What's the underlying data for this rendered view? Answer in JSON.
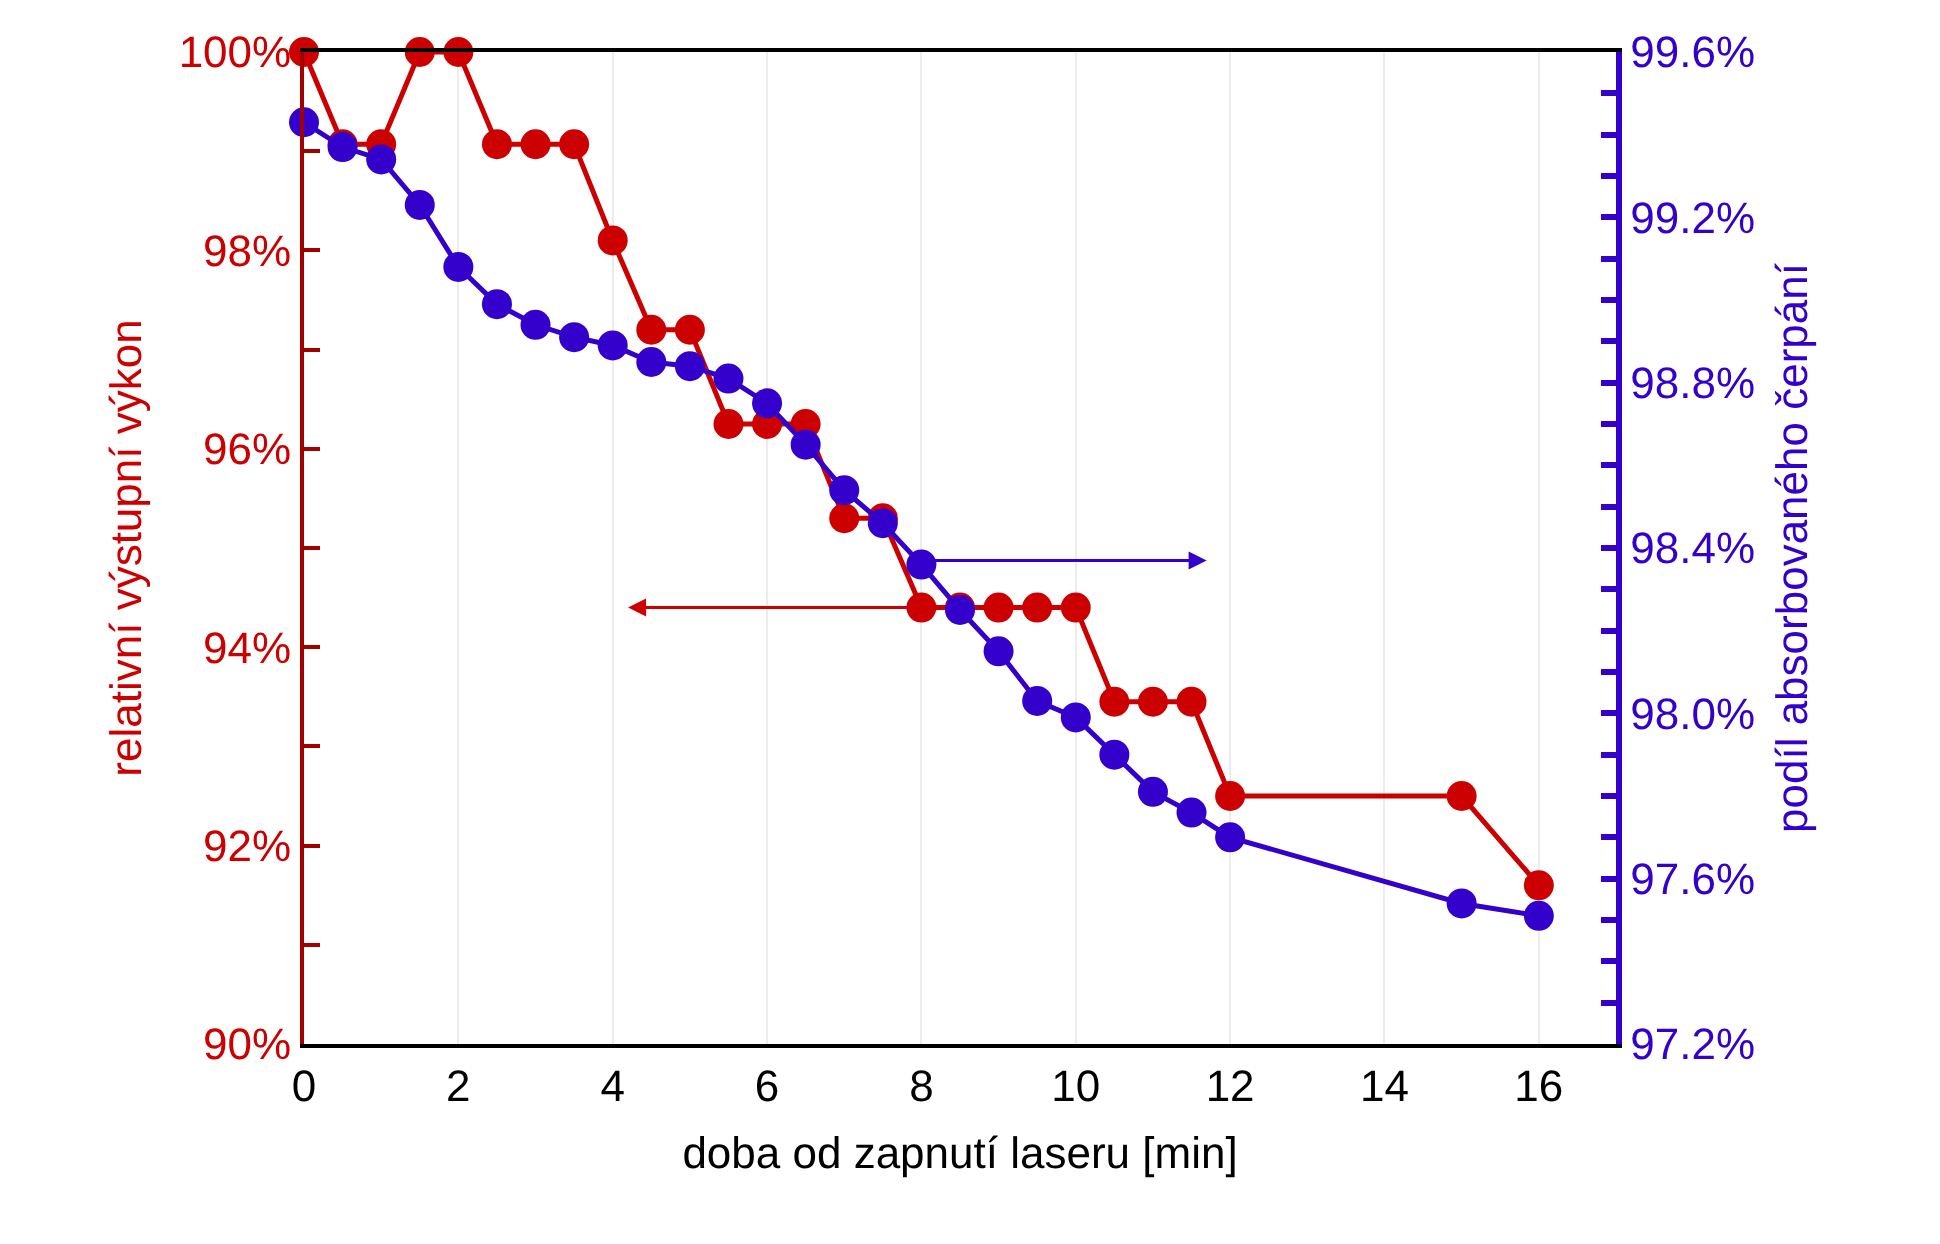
{
  "chart_data": {
    "type": "line",
    "xlabel": "doba od zapnutí laseru [min]",
    "ylabel": "relativní výstupní výkon",
    "y2label": "podíl absorbovaného čerpání",
    "xlim": [
      0,
      17
    ],
    "xticks": [
      0,
      2,
      4,
      6,
      8,
      10,
      12,
      14,
      16
    ],
    "ylim": [
      90,
      100
    ],
    "yticks": [
      {
        "value": 90,
        "label": "90%"
      },
      {
        "value": 92,
        "label": "92%"
      },
      {
        "value": 94,
        "label": "94%"
      },
      {
        "value": 96,
        "label": "96%"
      },
      {
        "value": 98,
        "label": "98%"
      },
      {
        "value": 100,
        "label": "100%"
      }
    ],
    "y2lim": [
      97.2,
      99.6
    ],
    "y2ticks": [
      {
        "value": 97.2,
        "label": "97.2%"
      },
      {
        "value": 97.6,
        "label": "97.6%"
      },
      {
        "value": 98.0,
        "label": "98.0%"
      },
      {
        "value": 98.4,
        "label": "98.4%"
      },
      {
        "value": 98.8,
        "label": "98.8%"
      },
      {
        "value": 99.2,
        "label": "99.2%"
      },
      {
        "value": 99.6,
        "label": "99.6%"
      }
    ],
    "grid": "x",
    "marker": "circle",
    "line_style": "solid",
    "series": [
      {
        "color": "#cc0000",
        "x": [
          0,
          0.5,
          1,
          1.5,
          2,
          2.5,
          3,
          3.5,
          4,
          4.5,
          5,
          5.5,
          6,
          6.5,
          7,
          7.5,
          8,
          8.5,
          9,
          9.5,
          10,
          10.5,
          11,
          11.5,
          12,
          15,
          16
        ],
        "values": [
          100,
          99.07,
          99.07,
          100,
          100,
          99.07,
          99.07,
          99.07,
          98.1,
          97.2,
          97.2,
          96.25,
          96.25,
          96.25,
          95.3,
          95.3,
          94.4,
          94.4,
          94.4,
          94.4,
          94.4,
          93.45,
          93.45,
          93.45,
          92.5,
          92.5,
          91.6
        ]
      },
      {
        "color": "#3300cc",
        "axis": "y2",
        "x": [
          0,
          0.5,
          1,
          1.5,
          2,
          2.5,
          3,
          3.5,
          4,
          4.5,
          5,
          5.5,
          6,
          6.5,
          7,
          7.5,
          8,
          8.5,
          9,
          9.5,
          10,
          10.5,
          11,
          11.5,
          12,
          15,
          16
        ],
        "values": [
          99.43,
          99.37,
          99.34,
          99.23,
          99.08,
          98.99,
          98.94,
          98.91,
          98.89,
          98.85,
          98.84,
          98.81,
          98.75,
          98.65,
          98.54,
          98.46,
          98.36,
          98.25,
          98.15,
          98.03,
          97.99,
          97.9,
          97.81,
          97.76,
          97.7,
          97.54,
          97.51
        ]
      }
    ]
  }
}
